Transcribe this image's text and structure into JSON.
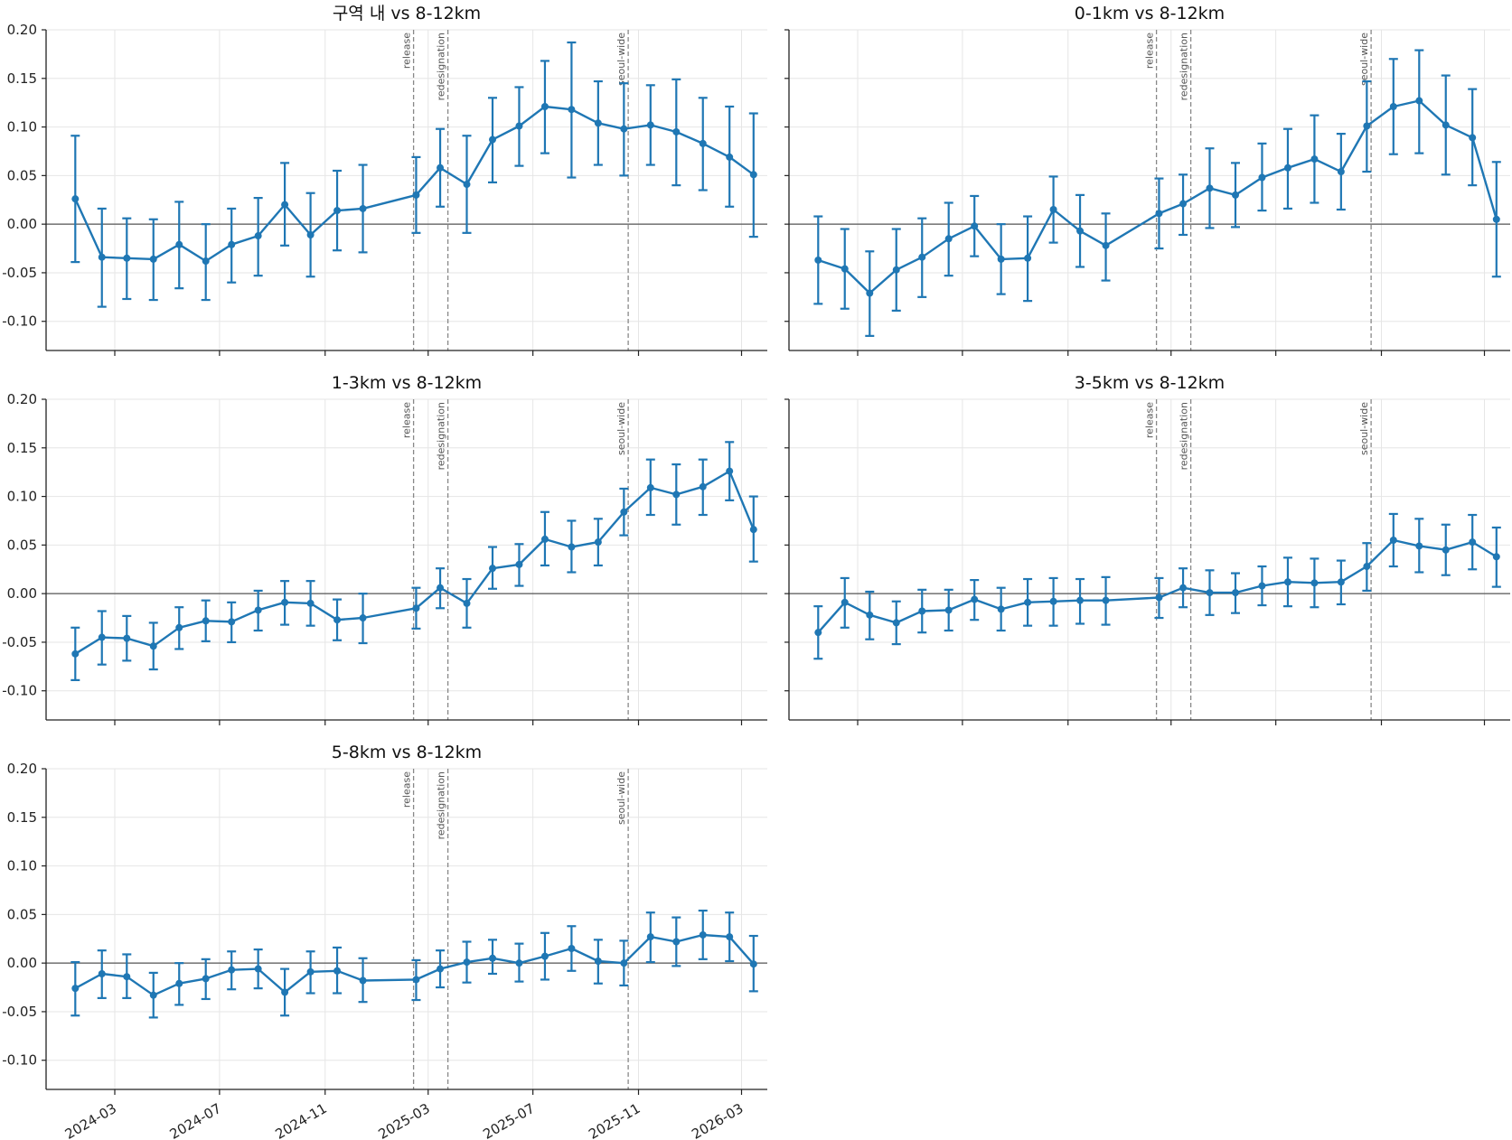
{
  "chart_data": [
    {
      "type": "line",
      "title": "구역 내 vs 8-12km",
      "x": [
        "2024-01",
        "2024-02",
        "2024-03",
        "2024-04",
        "2024-05",
        "2024-06",
        "2024-07",
        "2024-08",
        "2024-09",
        "2024-10",
        "2024-11",
        "2024-12",
        "2025-02",
        "2025-03",
        "2025-04",
        "2025-05",
        "2025-06",
        "2025-07",
        "2025-08",
        "2025-09",
        "2025-10",
        "2025-11",
        "2025-12",
        "2026-01",
        "2026-02",
        "2026-03"
      ],
      "series": [
        {
          "values": [
            0.026,
            -0.034,
            -0.035,
            -0.036,
            -0.021,
            -0.038,
            -0.021,
            -0.012,
            0.02,
            -0.011,
            0.014,
            0.016,
            0.03,
            0.058,
            0.041,
            0.087,
            0.101,
            0.121,
            0.118,
            0.104,
            0.098,
            0.102,
            0.095,
            0.083,
            0.069,
            0.051
          ],
          "ci_low": [
            -0.039,
            -0.085,
            -0.077,
            -0.078,
            -0.066,
            -0.078,
            -0.06,
            -0.053,
            -0.022,
            -0.054,
            -0.027,
            -0.029,
            -0.009,
            0.018,
            -0.009,
            0.043,
            0.06,
            0.073,
            0.048,
            0.061,
            0.05,
            0.061,
            0.04,
            0.035,
            0.018,
            -0.013
          ],
          "ci_high": [
            0.091,
            0.016,
            0.006,
            0.005,
            0.023,
            0.0,
            0.016,
            0.027,
            0.063,
            0.032,
            0.055,
            0.061,
            0.069,
            0.098,
            0.091,
            0.13,
            0.141,
            0.168,
            0.187,
            0.147,
            0.145,
            0.143,
            0.149,
            0.13,
            0.121,
            0.114
          ]
        }
      ]
    },
    {
      "type": "line",
      "title": "0-1km vs 8-12km",
      "x": [
        "2024-01",
        "2024-02",
        "2024-03",
        "2024-04",
        "2024-05",
        "2024-06",
        "2024-07",
        "2024-08",
        "2024-09",
        "2024-10",
        "2024-11",
        "2024-12",
        "2025-02",
        "2025-03",
        "2025-04",
        "2025-05",
        "2025-06",
        "2025-07",
        "2025-08",
        "2025-09",
        "2025-10",
        "2025-11",
        "2025-12",
        "2026-01",
        "2026-02",
        "2026-03"
      ],
      "series": [
        {
          "values": [
            -0.037,
            -0.046,
            -0.071,
            -0.047,
            -0.034,
            -0.015,
            -0.002,
            -0.036,
            -0.035,
            0.015,
            -0.007,
            -0.022,
            0.011,
            0.021,
            0.037,
            0.03,
            0.048,
            0.058,
            0.067,
            0.054,
            0.101,
            0.121,
            0.127,
            0.102,
            0.089,
            0.005
          ],
          "ci_low": [
            -0.082,
            -0.087,
            -0.115,
            -0.089,
            -0.075,
            -0.053,
            -0.033,
            -0.072,
            -0.079,
            -0.019,
            -0.044,
            -0.058,
            -0.025,
            -0.011,
            -0.004,
            -0.003,
            0.014,
            0.016,
            0.022,
            0.015,
            0.054,
            0.072,
            0.073,
            0.051,
            0.04,
            -0.054
          ],
          "ci_high": [
            0.008,
            -0.005,
            -0.028,
            -0.005,
            0.006,
            0.022,
            0.029,
            0.0,
            0.008,
            0.049,
            0.03,
            0.011,
            0.047,
            0.051,
            0.078,
            0.063,
            0.083,
            0.098,
            0.112,
            0.093,
            0.147,
            0.17,
            0.179,
            0.153,
            0.139,
            0.064
          ]
        }
      ]
    },
    {
      "type": "line",
      "title": "1-3km vs 8-12km",
      "x": [
        "2024-01",
        "2024-02",
        "2024-03",
        "2024-04",
        "2024-05",
        "2024-06",
        "2024-07",
        "2024-08",
        "2024-09",
        "2024-10",
        "2024-11",
        "2024-12",
        "2025-02",
        "2025-03",
        "2025-04",
        "2025-05",
        "2025-06",
        "2025-07",
        "2025-08",
        "2025-09",
        "2025-10",
        "2025-11",
        "2025-12",
        "2026-01",
        "2026-02",
        "2026-03"
      ],
      "series": [
        {
          "values": [
            -0.062,
            -0.045,
            -0.046,
            -0.054,
            -0.035,
            -0.028,
            -0.029,
            -0.017,
            -0.009,
            -0.01,
            -0.027,
            -0.025,
            -0.015,
            0.006,
            -0.01,
            0.026,
            0.03,
            0.056,
            0.048,
            0.053,
            0.084,
            0.109,
            0.102,
            0.11,
            0.126,
            0.066
          ],
          "ci_low": [
            -0.089,
            -0.073,
            -0.069,
            -0.078,
            -0.057,
            -0.049,
            -0.05,
            -0.038,
            -0.032,
            -0.033,
            -0.048,
            -0.051,
            -0.036,
            -0.015,
            -0.035,
            0.005,
            0.008,
            0.029,
            0.022,
            0.029,
            0.06,
            0.081,
            0.071,
            0.081,
            0.096,
            0.033
          ],
          "ci_high": [
            -0.035,
            -0.018,
            -0.023,
            -0.03,
            -0.014,
            -0.007,
            -0.009,
            0.003,
            0.013,
            0.013,
            -0.006,
            0.0,
            0.006,
            0.026,
            0.015,
            0.048,
            0.051,
            0.084,
            0.075,
            0.077,
            0.108,
            0.138,
            0.133,
            0.138,
            0.156,
            0.1
          ]
        }
      ]
    },
    {
      "type": "line",
      "title": "3-5km vs 8-12km",
      "x": [
        "2024-01",
        "2024-02",
        "2024-03",
        "2024-04",
        "2024-05",
        "2024-06",
        "2024-07",
        "2024-08",
        "2024-09",
        "2024-10",
        "2024-11",
        "2024-12",
        "2025-02",
        "2025-03",
        "2025-04",
        "2025-05",
        "2025-06",
        "2025-07",
        "2025-08",
        "2025-09",
        "2025-10",
        "2025-11",
        "2025-12",
        "2026-01",
        "2026-02",
        "2026-03"
      ],
      "series": [
        {
          "values": [
            -0.04,
            -0.009,
            -0.022,
            -0.03,
            -0.018,
            -0.017,
            -0.006,
            -0.016,
            -0.009,
            -0.008,
            -0.007,
            -0.007,
            -0.004,
            0.006,
            0.001,
            0.001,
            0.008,
            0.012,
            0.011,
            0.012,
            0.028,
            0.055,
            0.049,
            0.045,
            0.053,
            0.038
          ],
          "ci_low": [
            -0.067,
            -0.035,
            -0.047,
            -0.052,
            -0.04,
            -0.038,
            -0.027,
            -0.038,
            -0.033,
            -0.033,
            -0.031,
            -0.032,
            -0.025,
            -0.014,
            -0.022,
            -0.02,
            -0.012,
            -0.013,
            -0.014,
            -0.011,
            0.003,
            0.028,
            0.022,
            0.019,
            0.025,
            0.007
          ],
          "ci_high": [
            -0.013,
            0.016,
            0.002,
            -0.008,
            0.004,
            0.004,
            0.014,
            0.006,
            0.015,
            0.016,
            0.015,
            0.017,
            0.016,
            0.026,
            0.024,
            0.021,
            0.028,
            0.037,
            0.036,
            0.034,
            0.052,
            0.082,
            0.077,
            0.071,
            0.081,
            0.068
          ]
        }
      ]
    },
    {
      "type": "line",
      "title": "5-8km vs 8-12km",
      "x": [
        "2024-01",
        "2024-02",
        "2024-03",
        "2024-04",
        "2024-05",
        "2024-06",
        "2024-07",
        "2024-08",
        "2024-09",
        "2024-10",
        "2024-11",
        "2024-12",
        "2025-02",
        "2025-03",
        "2025-04",
        "2025-05",
        "2025-06",
        "2025-07",
        "2025-08",
        "2025-09",
        "2025-10",
        "2025-11",
        "2025-12",
        "2026-01",
        "2026-02",
        "2026-03"
      ],
      "series": [
        {
          "values": [
            -0.026,
            -0.011,
            -0.014,
            -0.033,
            -0.021,
            -0.016,
            -0.007,
            -0.006,
            -0.03,
            -0.009,
            -0.008,
            -0.018,
            -0.017,
            -0.006,
            0.001,
            0.005,
            0.0,
            0.007,
            0.015,
            0.002,
            0.0,
            0.027,
            0.022,
            0.029,
            0.027,
            -0.001
          ],
          "ci_low": [
            -0.054,
            -0.036,
            -0.036,
            -0.056,
            -0.043,
            -0.037,
            -0.027,
            -0.026,
            -0.054,
            -0.031,
            -0.031,
            -0.04,
            -0.038,
            -0.025,
            -0.02,
            -0.011,
            -0.019,
            -0.017,
            -0.008,
            -0.021,
            -0.023,
            0.001,
            -0.003,
            0.004,
            0.002,
            -0.029
          ],
          "ci_high": [
            0.001,
            0.013,
            0.009,
            -0.01,
            0.0,
            0.004,
            0.012,
            0.014,
            -0.006,
            0.012,
            0.016,
            0.005,
            0.003,
            0.013,
            0.022,
            0.024,
            0.02,
            0.031,
            0.038,
            0.024,
            0.023,
            0.052,
            0.047,
            0.054,
            0.052,
            0.028
          ]
        }
      ]
    }
  ],
  "shared": {
    "ylim": [
      -0.13,
      0.2
    ],
    "yticks": [
      -0.1,
      -0.05,
      0.0,
      0.05,
      0.1,
      0.15,
      0.2
    ],
    "ytick_labels": [
      "-0.10",
      "-0.05",
      "0.00",
      "0.05",
      "0.10",
      "0.15",
      "0.20"
    ],
    "xlim": [
      "2023-12-12",
      "2026-03-31"
    ],
    "xticks": [
      "2024-03",
      "2024-07",
      "2024-11",
      "2025-03",
      "2025-07",
      "2025-11",
      "2026-03"
    ],
    "xtick_labels": [
      "2024-03",
      "2024-07",
      "2024-11",
      "2025-03",
      "2025-07",
      "2025-11",
      "2026-03"
    ],
    "events": [
      {
        "label": "release",
        "date": "2025-02-12"
      },
      {
        "label": "redesignation",
        "date": "2025-03-24"
      },
      {
        "label": "seoul-wide",
        "date": "2025-10-20"
      }
    ],
    "grid": true,
    "zero_line": true,
    "colors": {
      "series": "#1f77b4",
      "zero_line": "#555555",
      "event_line": "#888888",
      "grid": "#e6e6e6",
      "axis": "#222222"
    }
  }
}
